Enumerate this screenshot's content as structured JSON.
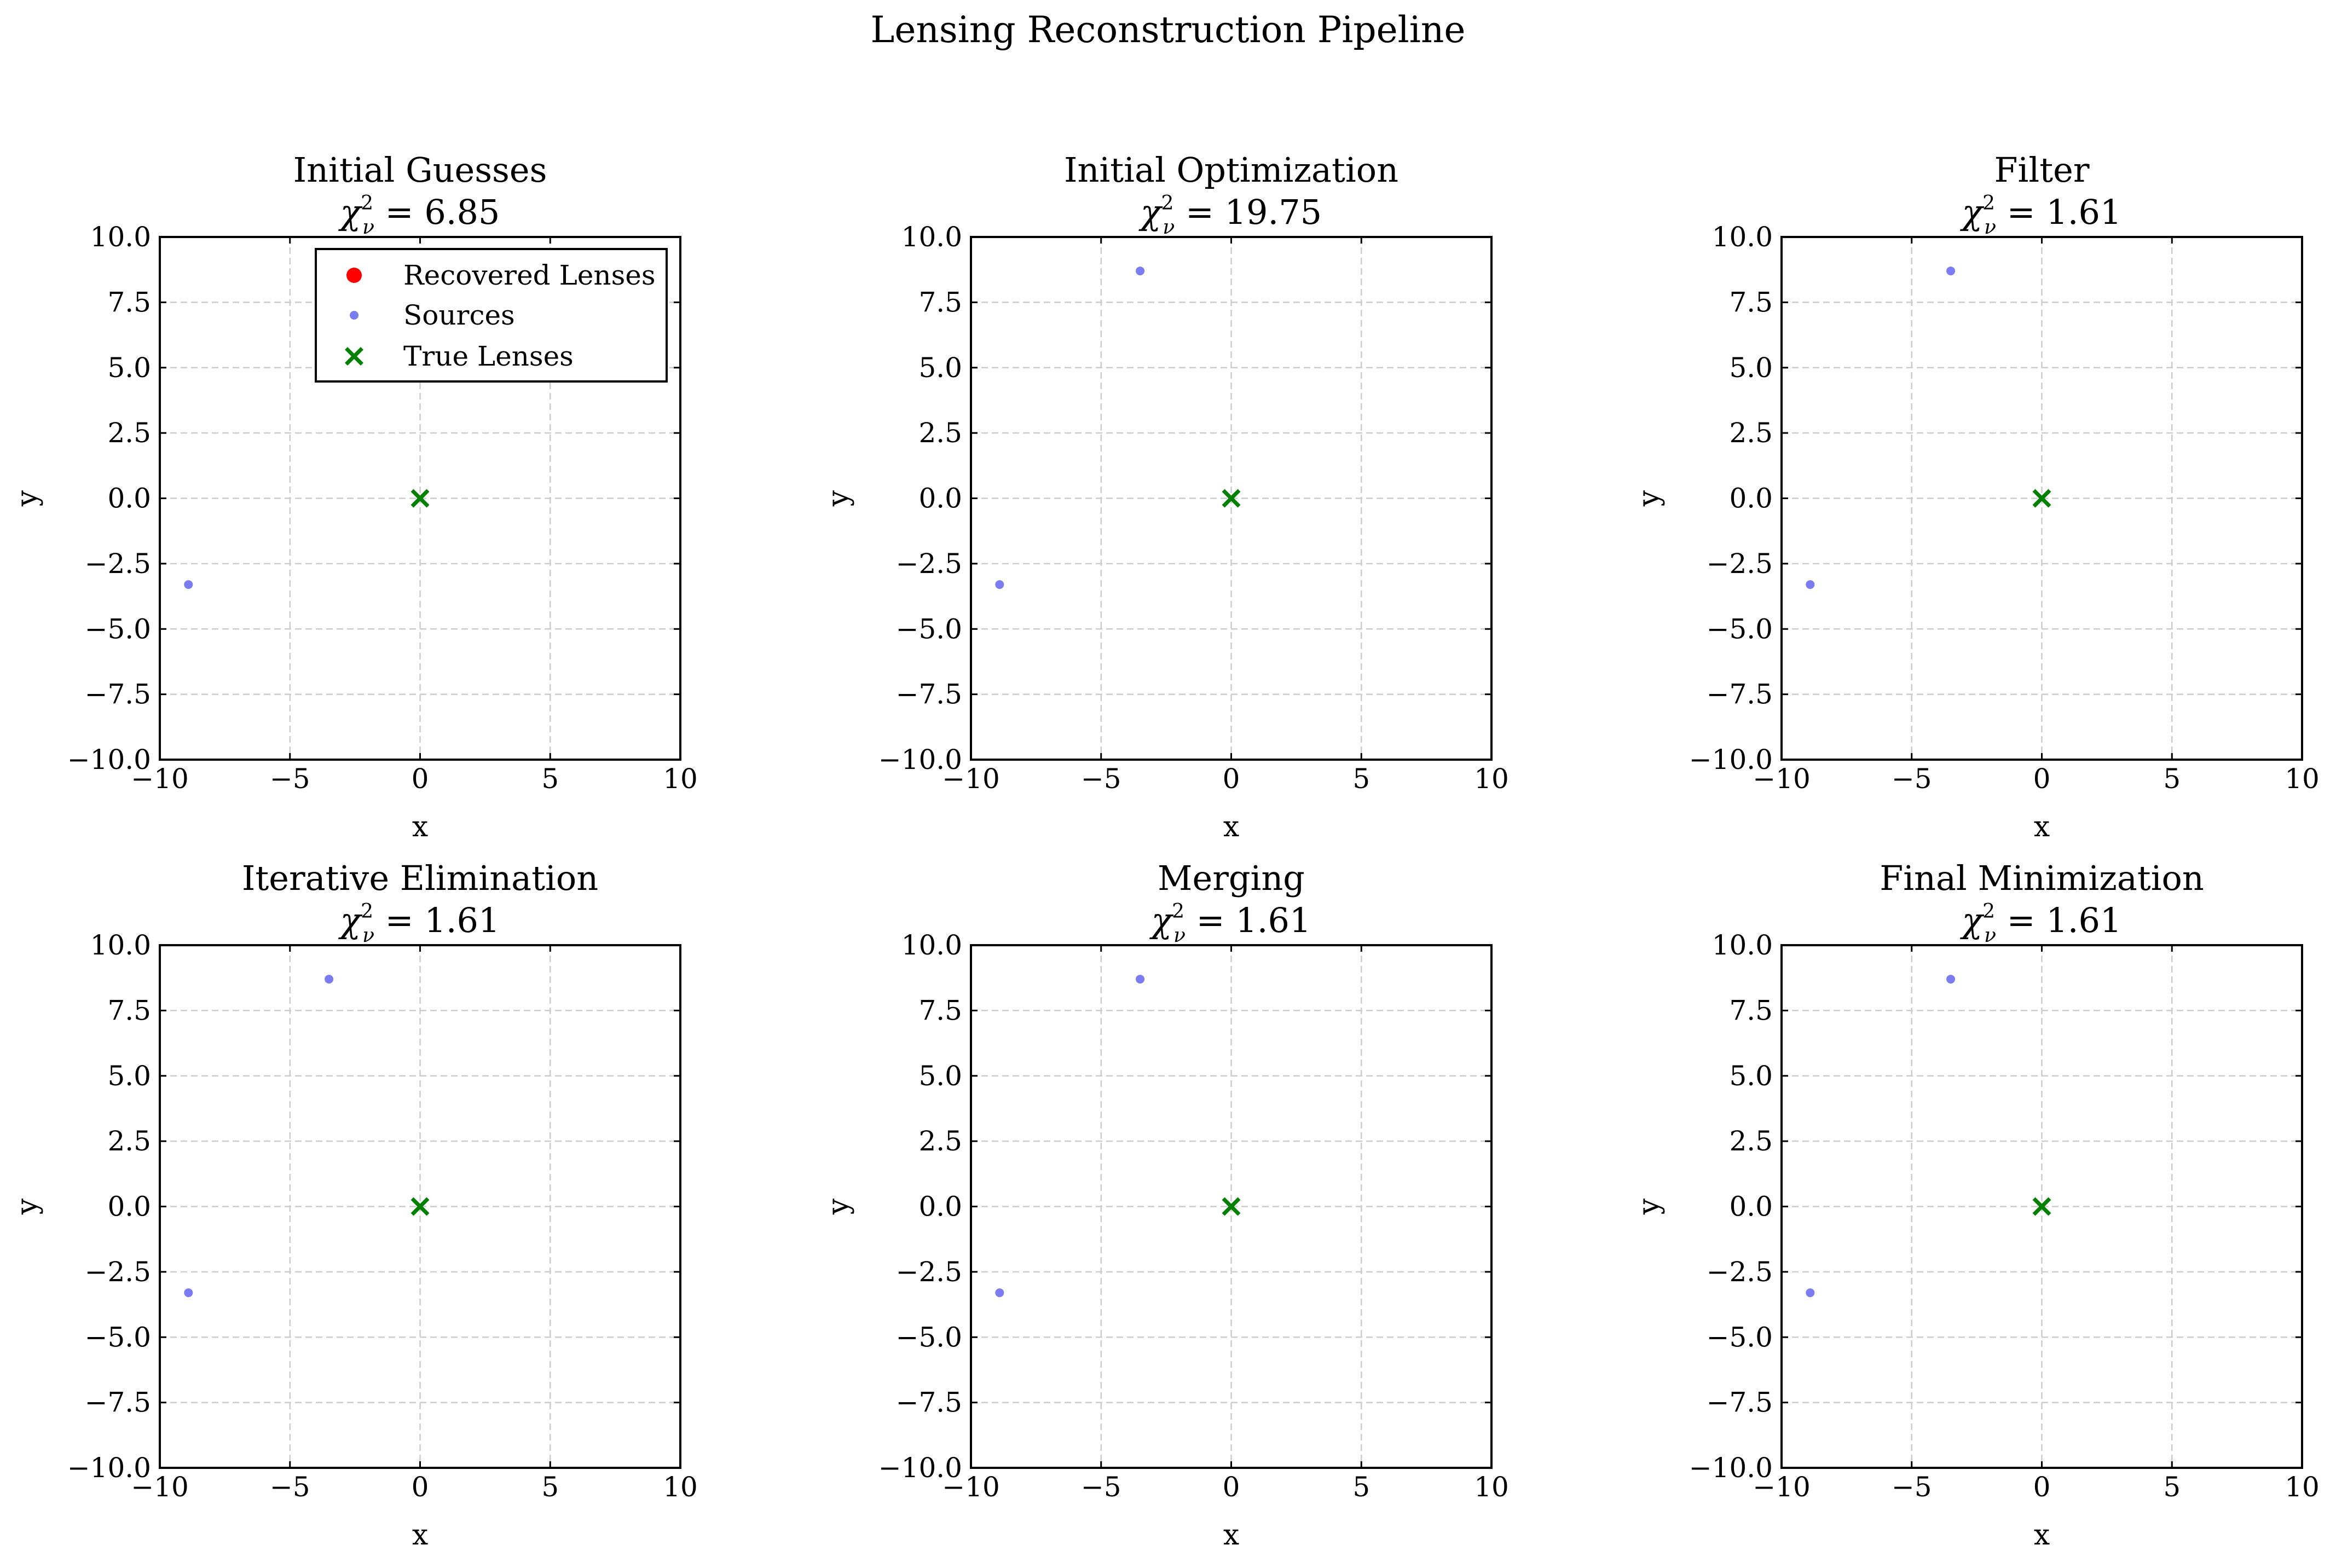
{
  "figure": {
    "title": "Lensing Reconstruction Pipeline"
  },
  "colors": {
    "recovered_lenses": "#ff0000",
    "sources": "#6464f0",
    "true_lenses": "#008000",
    "grid": "#cccccc",
    "frame": "#000000"
  },
  "chart_data": [
    {
      "type": "scatter",
      "title": "Initial Guesses",
      "chi2": "6.85",
      "xlabel": "x",
      "ylabel": "y",
      "xlim": [
        -10,
        10
      ],
      "ylim": [
        -10,
        10
      ],
      "xticks": [
        "−10",
        "−5",
        "0",
        "5",
        "10"
      ],
      "yticks": [
        "−10.0",
        "−7.5",
        "−5.0",
        "−2.5",
        "0.0",
        "2.5",
        "5.0",
        "7.5",
        "10.0"
      ],
      "grid": true,
      "legend": {
        "placement": "top-right",
        "entries": [
          "Recovered Lenses",
          "Sources",
          "True Lenses"
        ]
      },
      "series": [
        {
          "name": "Recovered Lenses",
          "marker": "circle",
          "points": []
        },
        {
          "name": "Sources",
          "marker": "dot",
          "points": [
            [
              -8.9,
              -3.3
            ]
          ]
        },
        {
          "name": "True Lenses",
          "marker": "x",
          "points": [
            [
              0,
              0
            ]
          ]
        }
      ]
    },
    {
      "type": "scatter",
      "title": "Initial Optimization",
      "chi2": "19.75",
      "xlabel": "x",
      "ylabel": "y",
      "xlim": [
        -10,
        10
      ],
      "ylim": [
        -10,
        10
      ],
      "xticks": [
        "−10",
        "−5",
        "0",
        "5",
        "10"
      ],
      "yticks": [
        "−10.0",
        "−7.5",
        "−5.0",
        "−2.5",
        "0.0",
        "2.5",
        "5.0",
        "7.5",
        "10.0"
      ],
      "grid": true,
      "series": [
        {
          "name": "Recovered Lenses",
          "marker": "circle",
          "points": []
        },
        {
          "name": "Sources",
          "marker": "dot",
          "points": [
            [
              -8.9,
              -3.3
            ],
            [
              -3.5,
              8.7
            ]
          ]
        },
        {
          "name": "True Lenses",
          "marker": "x",
          "points": [
            [
              0,
              0
            ]
          ]
        }
      ]
    },
    {
      "type": "scatter",
      "title": "Filter",
      "chi2": "1.61",
      "xlabel": "x",
      "ylabel": "y",
      "xlim": [
        -10,
        10
      ],
      "ylim": [
        -10,
        10
      ],
      "xticks": [
        "−10",
        "−5",
        "0",
        "5",
        "10"
      ],
      "yticks": [
        "−10.0",
        "−7.5",
        "−5.0",
        "−2.5",
        "0.0",
        "2.5",
        "5.0",
        "7.5",
        "10.0"
      ],
      "grid": true,
      "series": [
        {
          "name": "Recovered Lenses",
          "marker": "circle",
          "points": []
        },
        {
          "name": "Sources",
          "marker": "dot",
          "points": [
            [
              -8.9,
              -3.3
            ],
            [
              -3.5,
              8.7
            ]
          ]
        },
        {
          "name": "True Lenses",
          "marker": "x",
          "points": [
            [
              0,
              0
            ]
          ]
        }
      ]
    },
    {
      "type": "scatter",
      "title": "Iterative Elimination",
      "chi2": "1.61",
      "xlabel": "x",
      "ylabel": "y",
      "xlim": [
        -10,
        10
      ],
      "ylim": [
        -10,
        10
      ],
      "xticks": [
        "−10",
        "−5",
        "0",
        "5",
        "10"
      ],
      "yticks": [
        "−10.0",
        "−7.5",
        "−5.0",
        "−2.5",
        "0.0",
        "2.5",
        "5.0",
        "7.5",
        "10.0"
      ],
      "grid": true,
      "series": [
        {
          "name": "Recovered Lenses",
          "marker": "circle",
          "points": []
        },
        {
          "name": "Sources",
          "marker": "dot",
          "points": [
            [
              -8.9,
              -3.3
            ],
            [
              -3.5,
              8.7
            ]
          ]
        },
        {
          "name": "True Lenses",
          "marker": "x",
          "points": [
            [
              0,
              0
            ]
          ]
        }
      ]
    },
    {
      "type": "scatter",
      "title": "Merging",
      "chi2": "1.61",
      "xlabel": "x",
      "ylabel": "y",
      "xlim": [
        -10,
        10
      ],
      "ylim": [
        -10,
        10
      ],
      "xticks": [
        "−10",
        "−5",
        "0",
        "5",
        "10"
      ],
      "yticks": [
        "−10.0",
        "−7.5",
        "−5.0",
        "−2.5",
        "0.0",
        "2.5",
        "5.0",
        "7.5",
        "10.0"
      ],
      "grid": true,
      "series": [
        {
          "name": "Recovered Lenses",
          "marker": "circle",
          "points": []
        },
        {
          "name": "Sources",
          "marker": "dot",
          "points": [
            [
              -8.9,
              -3.3
            ],
            [
              -3.5,
              8.7
            ]
          ]
        },
        {
          "name": "True Lenses",
          "marker": "x",
          "points": [
            [
              0,
              0
            ]
          ]
        }
      ]
    },
    {
      "type": "scatter",
      "title": "Final Minimization",
      "chi2": "1.61",
      "xlabel": "x",
      "ylabel": "y",
      "xlim": [
        -10,
        10
      ],
      "ylim": [
        -10,
        10
      ],
      "xticks": [
        "−10",
        "−5",
        "0",
        "5",
        "10"
      ],
      "yticks": [
        "−10.0",
        "−7.5",
        "−5.0",
        "−2.5",
        "0.0",
        "2.5",
        "5.0",
        "7.5",
        "10.0"
      ],
      "grid": true,
      "series": [
        {
          "name": "Recovered Lenses",
          "marker": "circle",
          "points": []
        },
        {
          "name": "Sources",
          "marker": "dot",
          "points": [
            [
              -8.9,
              -3.3
            ],
            [
              -3.5,
              8.7
            ]
          ]
        },
        {
          "name": "True Lenses",
          "marker": "x",
          "points": [
            [
              0,
              0
            ]
          ]
        }
      ]
    }
  ]
}
